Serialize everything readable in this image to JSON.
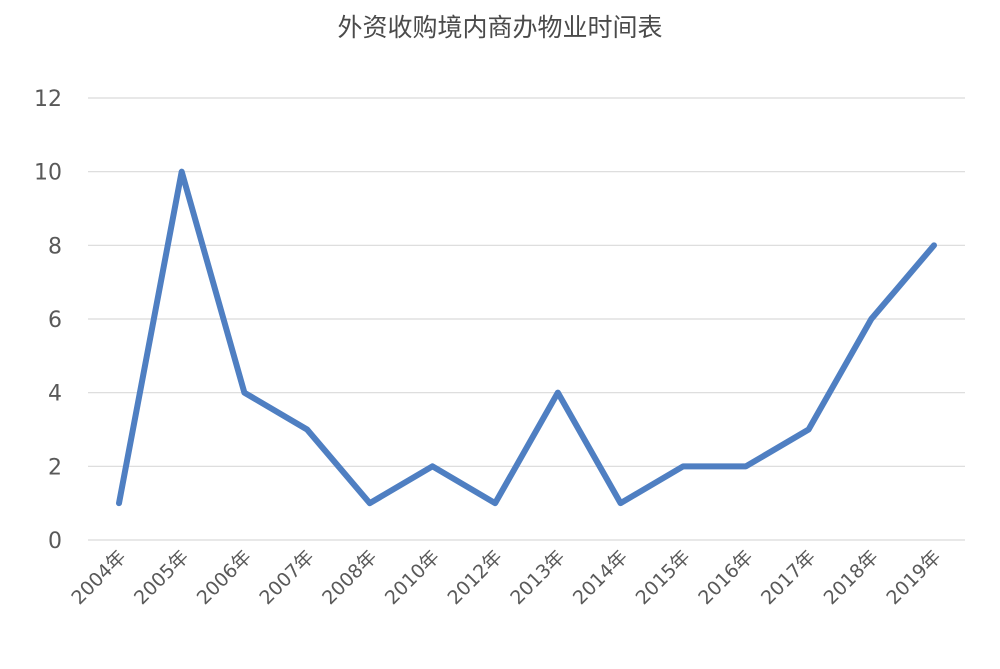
{
  "chart_data": {
    "type": "line",
    "title": "外资收购境内商办物业时间表",
    "categories": [
      "2004年",
      "2005年",
      "2006年",
      "2007年",
      "2008年",
      "2010年",
      "2012年",
      "2013年",
      "2014年",
      "2015年",
      "2016年",
      "2017年",
      "2018年",
      "2019年"
    ],
    "series": [
      {
        "values": [
          1,
          10,
          4,
          3,
          1,
          2,
          1,
          4,
          1,
          2,
          2,
          3,
          6,
          8
        ]
      }
    ],
    "ylim": [
      0,
      12
    ],
    "yticks": [
      "0",
      "2",
      "4",
      "6",
      "8",
      "10",
      "12"
    ],
    "grid": true,
    "legend": "none",
    "colors": {
      "line": "#4f7fc2",
      "grid": "#d9d9d9",
      "text": "#595959"
    }
  }
}
